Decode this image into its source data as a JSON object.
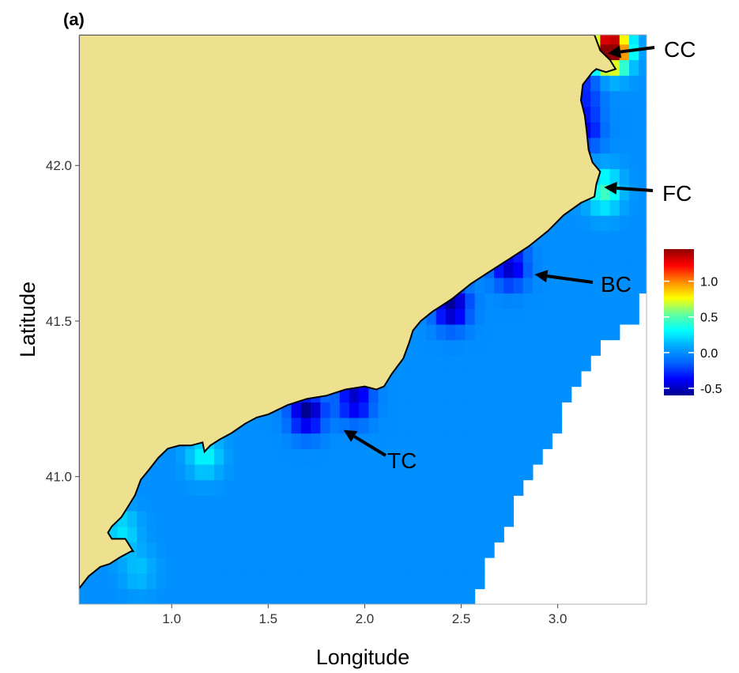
{
  "panel_label": "(a)",
  "axes": {
    "xlabel": "Longitude",
    "ylabel": "Latitude",
    "xlim": [
      0.52,
      3.46
    ],
    "ylim": [
      40.59,
      42.42
    ],
    "xticks": [
      1.0,
      1.5,
      2.0,
      2.5,
      3.0
    ],
    "xtick_labels": [
      "1.0",
      "1.5",
      "2.0",
      "2.5",
      "3.0"
    ],
    "yticks": [
      41.0,
      41.5,
      42.0
    ],
    "ytick_labels": [
      "41.0",
      "41.5",
      "42.0"
    ],
    "grid": false
  },
  "colors": {
    "land": "#ede08e",
    "coastline": "#000000",
    "frame": "#b0b0b0",
    "colormap": [
      "#00008f",
      "#0000ff",
      "#0063ff",
      "#00a8ff",
      "#00ffff",
      "#63ff9c",
      "#ffff00",
      "#ff8800",
      "#ff0000",
      "#8f0000"
    ]
  },
  "colorbar": {
    "range": [
      -0.6,
      1.45
    ],
    "ticks": [
      1.0,
      0.5,
      0.0,
      -0.5
    ],
    "tick_labels": [
      "1.0",
      "0.5",
      "0.0",
      "-0.5"
    ],
    "placement": "right"
  },
  "annotations": [
    {
      "label": "CC",
      "target": [
        3.26,
        42.36
      ]
    },
    {
      "label": "FC",
      "target": [
        3.24,
        41.93
      ]
    },
    {
      "label": "BC",
      "target": [
        2.88,
        41.65
      ]
    },
    {
      "label": "TC",
      "target": [
        1.89,
        41.15
      ]
    }
  ],
  "chart_data": {
    "type": "heatmap",
    "title": "",
    "xlabel": "Longitude",
    "ylabel": "Latitude",
    "xlim": [
      0.52,
      3.46
    ],
    "ylim": [
      40.59,
      42.42
    ],
    "cell_size_deg": 0.05,
    "coastline": [
      [
        0.52,
        40.64
      ],
      [
        0.57,
        40.68
      ],
      [
        0.63,
        40.71
      ],
      [
        0.68,
        40.72
      ],
      [
        0.73,
        40.74
      ],
      [
        0.79,
        40.76
      ],
      [
        0.8,
        40.76
      ],
      [
        0.76,
        40.8
      ],
      [
        0.69,
        40.8
      ],
      [
        0.67,
        40.82
      ],
      [
        0.69,
        40.84
      ],
      [
        0.74,
        40.87
      ],
      [
        0.77,
        40.9
      ],
      [
        0.81,
        40.94
      ],
      [
        0.84,
        40.99
      ],
      [
        0.88,
        41.02
      ],
      [
        0.93,
        41.06
      ],
      [
        0.98,
        41.09
      ],
      [
        1.04,
        41.1
      ],
      [
        1.1,
        41.1
      ],
      [
        1.16,
        41.11
      ],
      [
        1.17,
        41.08
      ],
      [
        1.2,
        41.1
      ],
      [
        1.25,
        41.12
      ],
      [
        1.31,
        41.14
      ],
      [
        1.38,
        41.17
      ],
      [
        1.44,
        41.19
      ],
      [
        1.5,
        41.2
      ],
      [
        1.6,
        41.23
      ],
      [
        1.7,
        41.25
      ],
      [
        1.8,
        41.26
      ],
      [
        1.9,
        41.28
      ],
      [
        2.0,
        41.29
      ],
      [
        2.06,
        41.28
      ],
      [
        2.1,
        41.29
      ],
      [
        2.14,
        41.33
      ],
      [
        2.2,
        41.38
      ],
      [
        2.23,
        41.43
      ],
      [
        2.25,
        41.47
      ],
      [
        2.29,
        41.5
      ],
      [
        2.35,
        41.53
      ],
      [
        2.45,
        41.57
      ],
      [
        2.55,
        41.62
      ],
      [
        2.65,
        41.66
      ],
      [
        2.75,
        41.7
      ],
      [
        2.85,
        41.74
      ],
      [
        2.95,
        41.79
      ],
      [
        3.03,
        41.84
      ],
      [
        3.12,
        41.88
      ],
      [
        3.19,
        41.9
      ],
      [
        3.2,
        41.94
      ],
      [
        3.22,
        41.98
      ],
      [
        3.18,
        42.01
      ],
      [
        3.16,
        42.05
      ],
      [
        3.15,
        42.11
      ],
      [
        3.14,
        42.16
      ],
      [
        3.12,
        42.21
      ],
      [
        3.13,
        42.26
      ],
      [
        3.18,
        42.3
      ],
      [
        3.2,
        42.31
      ],
      [
        3.25,
        42.3
      ],
      [
        3.3,
        42.31
      ],
      [
        3.27,
        42.34
      ],
      [
        3.22,
        42.37
      ],
      [
        3.19,
        42.42
      ]
    ],
    "data_extent_east_edge": [
      [
        40.6,
        2.55
      ],
      [
        40.7,
        2.62
      ],
      [
        40.8,
        2.72
      ],
      [
        40.9,
        2.77
      ],
      [
        41.0,
        2.87
      ],
      [
        41.1,
        2.95
      ],
      [
        41.2,
        3.03
      ],
      [
        41.3,
        3.11
      ],
      [
        41.4,
        3.17
      ],
      [
        41.5,
        3.41
      ],
      [
        41.6,
        3.46
      ],
      [
        42.42,
        3.46
      ]
    ],
    "hotspots": [
      {
        "lon": 3.26,
        "lat": 42.38,
        "value": 1.3
      },
      {
        "lon": 3.3,
        "lat": 42.38,
        "value": 0.6
      },
      {
        "lon": 3.24,
        "lat": 41.92,
        "value": 0.45
      },
      {
        "lon": 1.17,
        "lat": 41.07,
        "value": 0.3
      },
      {
        "lon": 0.74,
        "lat": 40.83,
        "value": 0.25
      },
      {
        "lon": 0.83,
        "lat": 40.7,
        "value": 0.15
      },
      {
        "lon": 1.7,
        "lat": 41.21,
        "value": -0.6
      },
      {
        "lon": 1.95,
        "lat": 41.25,
        "value": -0.5
      },
      {
        "lon": 2.45,
        "lat": 41.55,
        "value": -0.6
      },
      {
        "lon": 2.75,
        "lat": 41.68,
        "value": -0.5
      },
      {
        "lon": 3.14,
        "lat": 42.12,
        "value": -0.4
      },
      {
        "lon": 3.14,
        "lat": 42.25,
        "value": -0.3
      }
    ],
    "background_value": 0.0
  }
}
